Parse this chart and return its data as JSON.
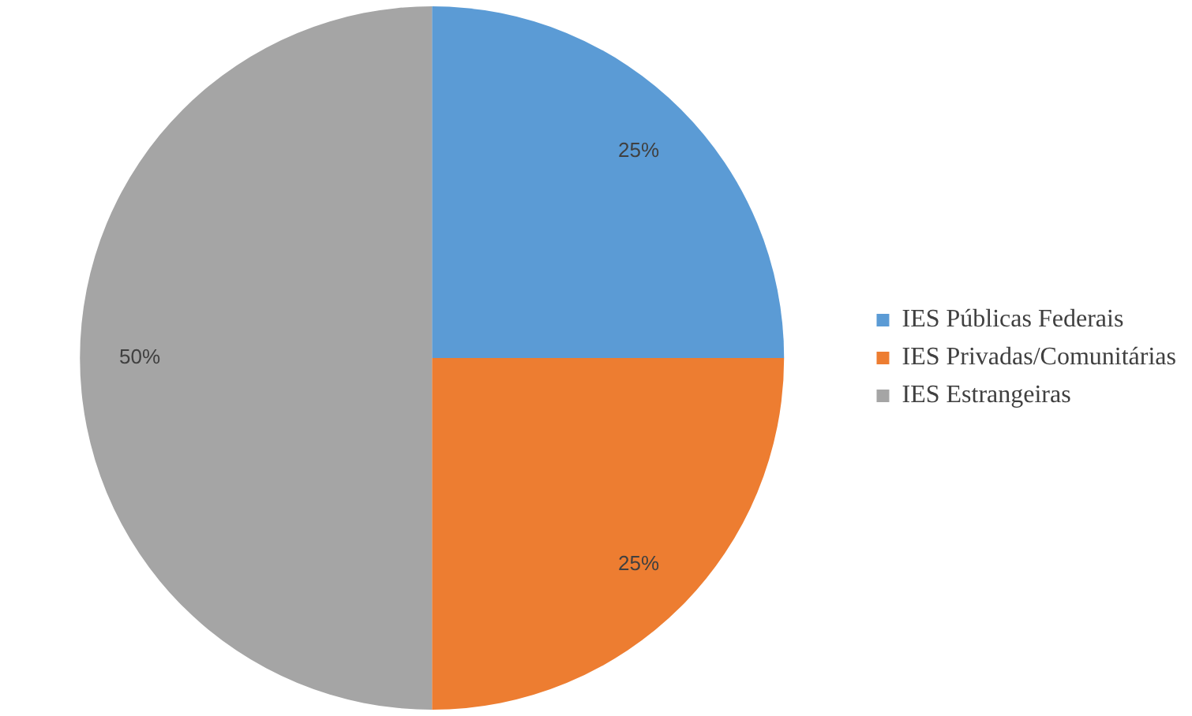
{
  "chart_data": {
    "type": "pie",
    "categories": [
      "IES Públicas Federais",
      "IES Privadas/Comunitárias",
      "IES Estrangeiras"
    ],
    "values": [
      25,
      25,
      50
    ],
    "colors": [
      "#5b9bd5",
      "#ed7d31",
      "#a5a5a5"
    ],
    "value_labels": [
      "25%",
      "25%",
      "50%"
    ],
    "legend": "right"
  }
}
